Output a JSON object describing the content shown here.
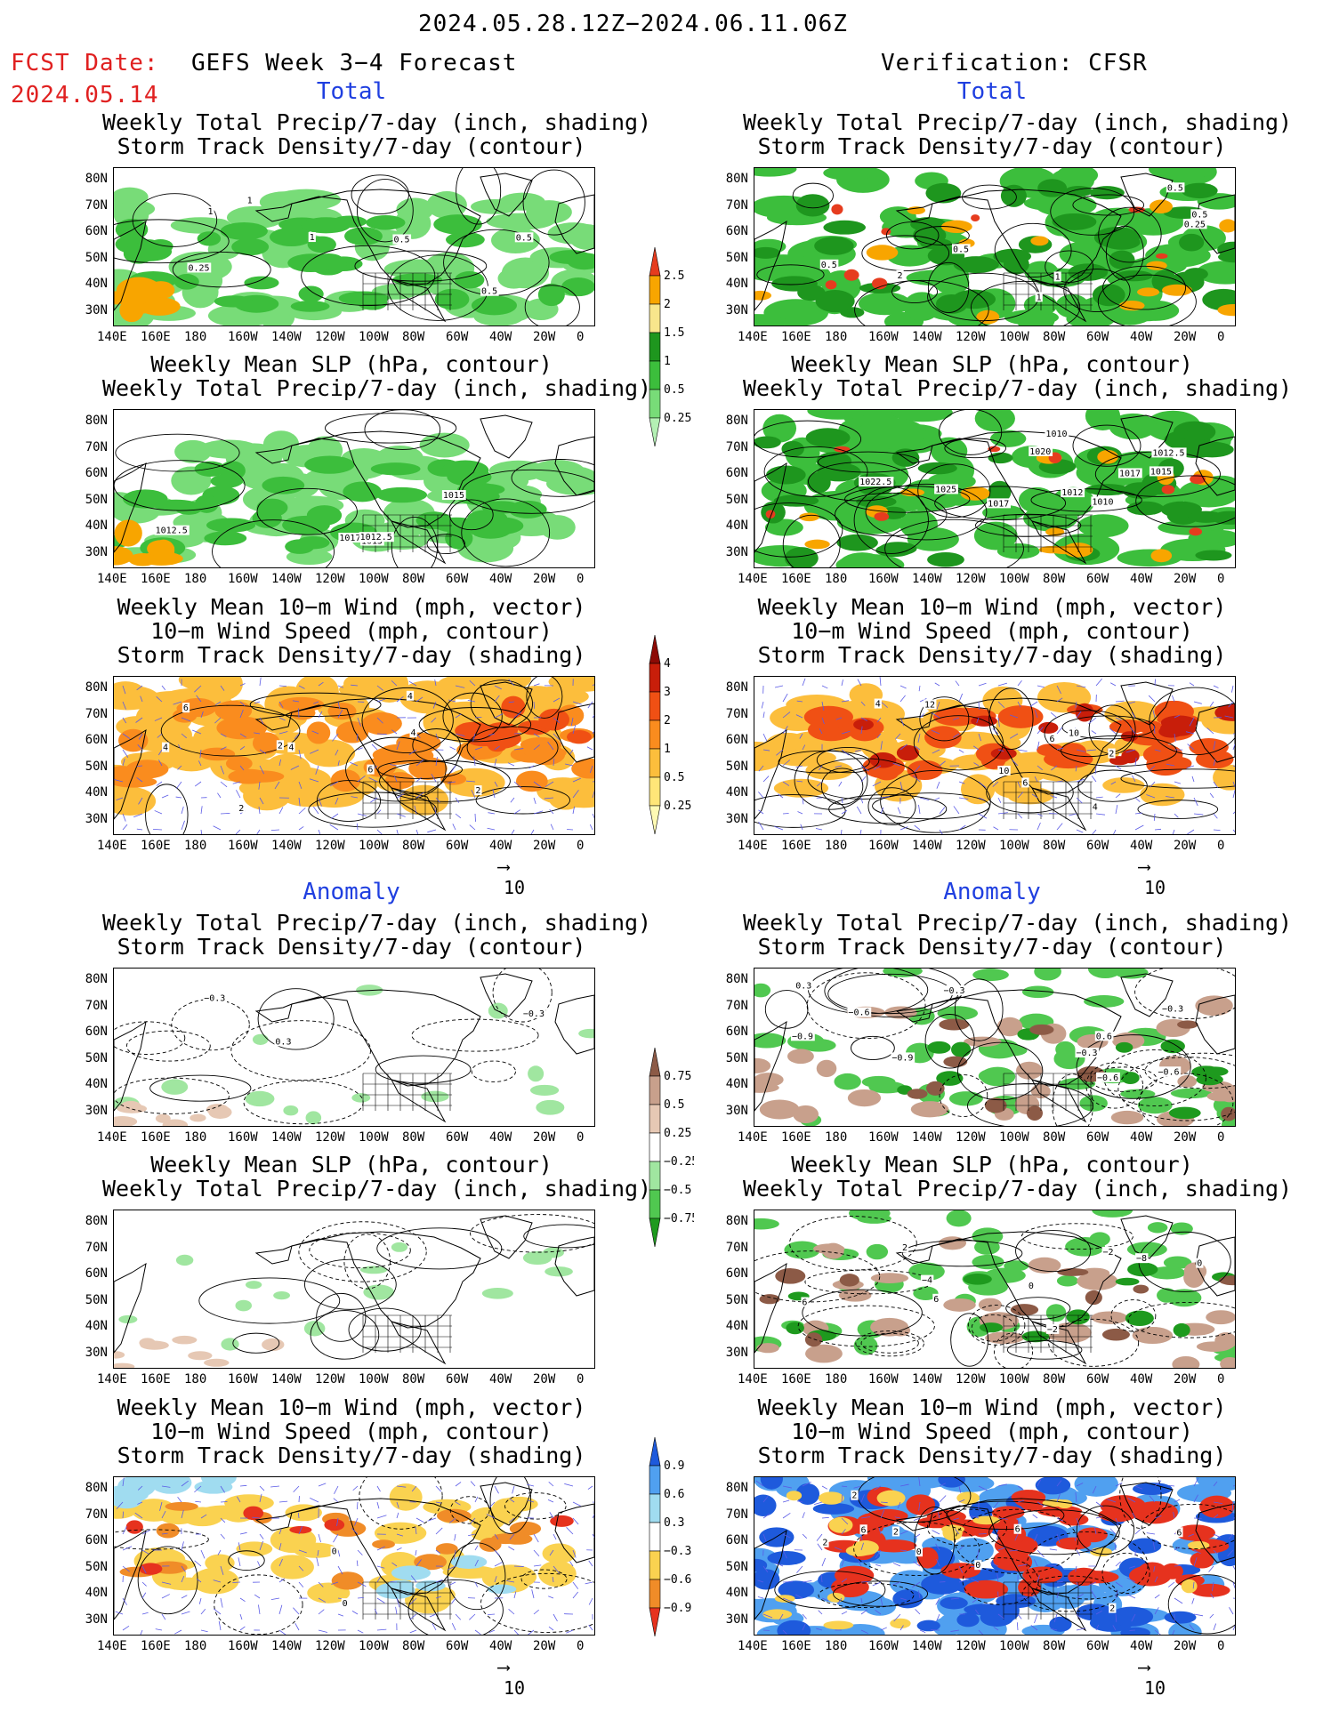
{
  "header": {
    "date_range": "2024.05.28.12Z−2024.06.11.06Z",
    "fcst_label": "FCST Date:",
    "fcst_date": "2024.05.14",
    "left_title": "GEFS Week 3−4 Forecast",
    "right_title": "Verification: CFSR"
  },
  "sections": {
    "total": "Total",
    "anomaly": "Anomaly"
  },
  "panel_titles": {
    "precip_storm": [
      "Weekly Total Precip/7-day (inch, shading)",
      "Storm Track Density/7-day (contour)"
    ],
    "slp_precip": [
      "Weekly Mean SLP (hPa, contour)",
      "Weekly Total Precip/7-day (inch, shading)"
    ],
    "wind_storm": [
      "Weekly Mean 10−m Wind (mph, vector)",
      "10−m Wind Speed (mph, contour)",
      "Storm Track Density/7-day (shading)"
    ]
  },
  "axes": {
    "lat_labels": [
      "80N",
      "70N",
      "60N",
      "50N",
      "40N",
      "30N"
    ],
    "lon_labels": [
      "140E",
      "160E",
      "180",
      "160W",
      "140W",
      "120W",
      "100W",
      "80W",
      "60W",
      "40W",
      "20W",
      "0"
    ]
  },
  "vector_ref": "10",
  "colorbars": {
    "precip_total": {
      "levels": [
        "0.25",
        "0.5",
        "1",
        "1.5",
        "2",
        "2.5"
      ],
      "colors": [
        "#b4f0b4",
        "#78dc78",
        "#3cbe3c",
        "#1e961e",
        "#f8e68c",
        "#f8a500",
        "#e63c1e"
      ]
    },
    "storm_total": {
      "levels": [
        "0.25",
        "0.5",
        "1",
        "2",
        "3",
        "4"
      ],
      "colors": [
        "#fffab4",
        "#ffe678",
        "#fcbe3c",
        "#fa8c1e",
        "#f05014",
        "#c81e0a",
        "#8c0a05"
      ]
    },
    "precip_anom": {
      "levels": [
        "0.75",
        "0.5",
        "0.25",
        "−0.25",
        "−0.5",
        "−0.75"
      ],
      "colors": [
        "#1e9a1e",
        "#50c850",
        "#a0e6a0",
        "#ffffff",
        "#e6c8b4",
        "#c8a08c",
        "#8c5a46"
      ]
    },
    "storm_anom": {
      "levels": [
        "0.9",
        "0.6",
        "0.3",
        "−0.3",
        "−0.6",
        "−0.9"
      ],
      "colors": [
        "#e6321e",
        "#f08c28",
        "#fad250",
        "#ffffff",
        "#a0dcf0",
        "#50a0f0",
        "#1e5adc"
      ]
    }
  },
  "contour_labels": {
    "p1": [
      "1",
      "0.5",
      "1",
      "0.5",
      "0.25",
      "1",
      "0.5"
    ],
    "p2": [
      "1015",
      "1017.5",
      "1012.5",
      "1012.5",
      "1015"
    ],
    "p3": [
      "2",
      "4",
      "4",
      "2",
      "4",
      "2",
      "4",
      "6",
      "6"
    ],
    "p4": [
      "0.5",
      "1",
      "2",
      "0.5",
      "0.25",
      "0.5",
      "1",
      "0.5"
    ],
    "p5": [
      "1025",
      "1022.5",
      "1012.5",
      "1010",
      "1020",
      "1017",
      "1012",
      "1015",
      "1010",
      "1017"
    ],
    "p6": [
      "6",
      "4",
      "10",
      "12",
      "4",
      "6",
      "10",
      "2"
    ],
    "p7": [
      "−0.3",
      "0.3",
      "−0.3"
    ],
    "p9": [
      "0",
      "0"
    ],
    "p10": [
      "−0.6",
      "0.3",
      "−0.9",
      "−0.6",
      "−0.3",
      "−0.3",
      "0.6",
      "−0.3",
      "−0.9",
      "−0.6"
    ],
    "p11": [
      "6",
      "0",
      "−2",
      "−8",
      "−4",
      "0",
      "−2",
      "2",
      "6"
    ],
    "p12": [
      "0",
      "2",
      "2",
      "6",
      "6",
      "2",
      "2",
      "6",
      "0"
    ]
  }
}
